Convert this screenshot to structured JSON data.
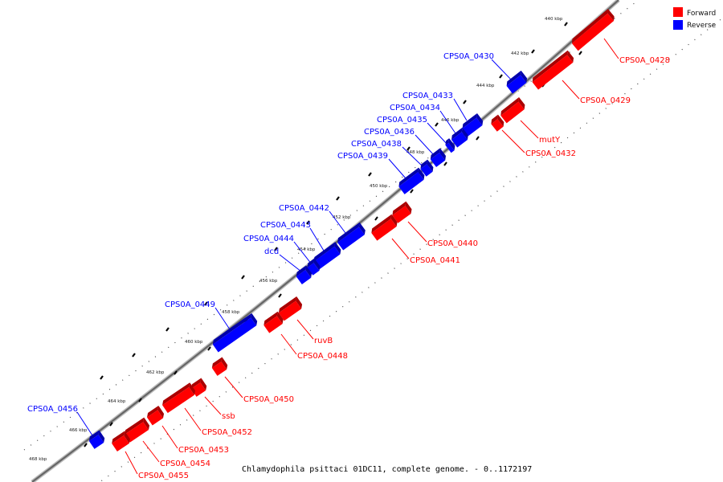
{
  "caption": "Chlamydophila psittaci 01DC11, complete genome. - 0..1172197",
  "legend": [
    {
      "label": "Forward",
      "color": "#ff0000"
    },
    {
      "label": "Reverse",
      "color": "#0000ff"
    }
  ],
  "ticks": [
    "440 kbp",
    "442 kbp",
    "444 kbp",
    "446 kbp",
    "448 kbp",
    "450 kbp",
    "452 kbp",
    "454 kbp",
    "456 kbp",
    "458 kbp",
    "460 kbp",
    "462 kbp",
    "464 kbp",
    "466 kbp",
    "468 kbp"
  ],
  "genes": [
    {
      "name": "CPS0A_0428",
      "strand": "forward"
    },
    {
      "name": "CPS0A_0429",
      "strand": "forward"
    },
    {
      "name": "CPS0A_0430",
      "strand": "reverse"
    },
    {
      "name": "mutY",
      "strand": "forward"
    },
    {
      "name": "CPS0A_0432",
      "strand": "forward"
    },
    {
      "name": "CPS0A_0433",
      "strand": "reverse"
    },
    {
      "name": "CPS0A_0434",
      "strand": "reverse"
    },
    {
      "name": "CPS0A_0435",
      "strand": "reverse"
    },
    {
      "name": "CPS0A_0436",
      "strand": "reverse"
    },
    {
      "name": "CPS0A_0438",
      "strand": "reverse"
    },
    {
      "name": "CPS0A_0439",
      "strand": "reverse"
    },
    {
      "name": "CPS0A_0440",
      "strand": "forward"
    },
    {
      "name": "CPS0A_0441",
      "strand": "forward"
    },
    {
      "name": "CPS0A_0442",
      "strand": "reverse"
    },
    {
      "name": "CPS0A_0443",
      "strand": "reverse"
    },
    {
      "name": "CPS0A_0444",
      "strand": "reverse"
    },
    {
      "name": "dcd",
      "strand": "reverse"
    },
    {
      "name": "CPS0A_0449",
      "strand": "reverse"
    },
    {
      "name": "ruvB",
      "strand": "forward"
    },
    {
      "name": "CPS0A_0448",
      "strand": "forward"
    },
    {
      "name": "CPS0A_0450",
      "strand": "forward"
    },
    {
      "name": "ssb",
      "strand": "forward"
    },
    {
      "name": "CPS0A_0452",
      "strand": "forward"
    },
    {
      "name": "CPS0A_0453",
      "strand": "forward"
    },
    {
      "name": "CPS0A_0454",
      "strand": "forward"
    },
    {
      "name": "CPS0A_0455",
      "strand": "forward"
    },
    {
      "name": "CPS0A_0456",
      "strand": "reverse"
    }
  ]
}
